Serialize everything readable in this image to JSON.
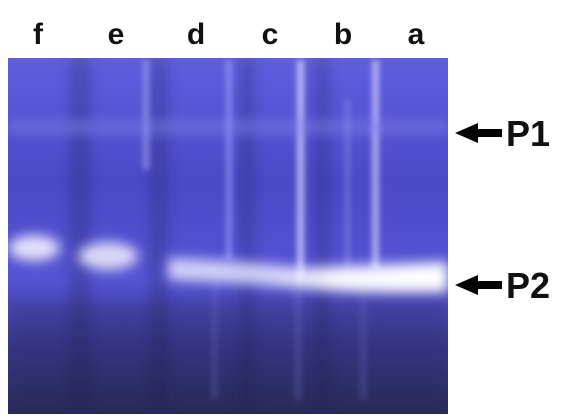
{
  "lanes": [
    "f",
    "e",
    "d",
    "c",
    "b",
    "a"
  ],
  "markers": [
    "P1",
    "P2"
  ]
}
